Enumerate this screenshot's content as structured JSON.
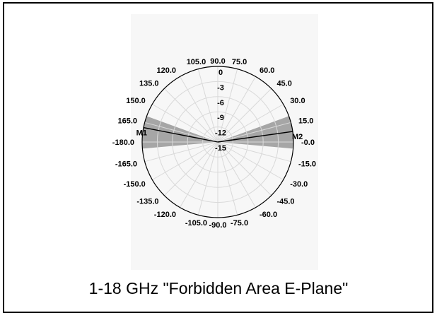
{
  "caption": "1-18 GHz \"Forbidden Area E-Plane\"",
  "chart_data": {
    "type": "polar",
    "title": "",
    "angle_ticks": [
      {
        "deg": 90,
        "label": "90.0"
      },
      {
        "deg": 75,
        "label": "75.0"
      },
      {
        "deg": 60,
        "label": "60.0"
      },
      {
        "deg": 45,
        "label": "45.0"
      },
      {
        "deg": 30,
        "label": "30.0"
      },
      {
        "deg": 15,
        "label": "15.0"
      },
      {
        "deg": 0,
        "label": "-0.0"
      },
      {
        "deg": -15,
        "label": "-15.0"
      },
      {
        "deg": -30,
        "label": "-30.0"
      },
      {
        "deg": -45,
        "label": "-45.0"
      },
      {
        "deg": -60,
        "label": "-60.0"
      },
      {
        "deg": -75,
        "label": "-75.0"
      },
      {
        "deg": -90,
        "label": "-90.0"
      },
      {
        "deg": -105,
        "label": "-105.0"
      },
      {
        "deg": -120,
        "label": "-120.0"
      },
      {
        "deg": -135,
        "label": "-135.0"
      },
      {
        "deg": -150,
        "label": "-150.0"
      },
      {
        "deg": -165,
        "label": "-165.0"
      },
      {
        "deg": 180,
        "label": "-180.0"
      },
      {
        "deg": 165,
        "label": "165.0"
      },
      {
        "deg": 150,
        "label": "150.0"
      },
      {
        "deg": 135,
        "label": "135.0"
      },
      {
        "deg": 120,
        "label": "120.0"
      },
      {
        "deg": 105,
        "label": "105.0"
      }
    ],
    "radial_ticks": [
      "0",
      "-3",
      "-6",
      "-9",
      "-12",
      "-15"
    ],
    "radial_range": [
      -15,
      0
    ],
    "forbidden_sectors": [
      {
        "from_deg": -5,
        "to_deg": 20,
        "color": "#a6a6a6"
      },
      {
        "from_deg": 160,
        "to_deg": 185,
        "color": "#a6a6a6"
      }
    ],
    "markers": [
      {
        "name": "M1",
        "deg": 169,
        "value": 0
      },
      {
        "name": "M2",
        "deg": 8,
        "value": 0
      }
    ],
    "grid": true,
    "colors": {
      "grid": "#d9d9d9",
      "sector": "#a6a6a6",
      "outline": "#000000",
      "marker_line": "#000000"
    }
  }
}
